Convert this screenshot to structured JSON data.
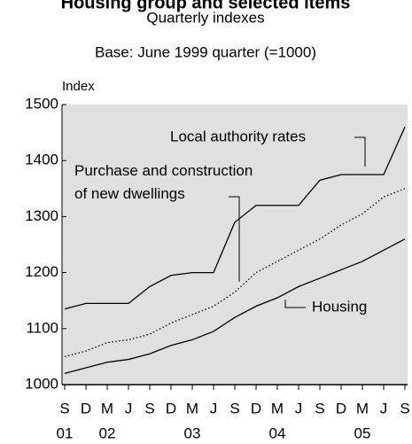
{
  "chart_data": {
    "type": "line",
    "title": "Housing group and selected items",
    "subtitle": "Quarterly indexes",
    "note": "Base: June 1999 quarter (=1000)",
    "y_label": "Index",
    "categories": [
      "S",
      "D",
      "M",
      "J",
      "S",
      "D",
      "M",
      "J",
      "S",
      "D",
      "M",
      "J",
      "S",
      "D",
      "M",
      "J",
      "S"
    ],
    "years": [
      "01",
      null,
      "02",
      null,
      null,
      null,
      "03",
      null,
      null,
      null,
      "04",
      null,
      null,
      null,
      "05",
      null,
      null
    ],
    "ylim": [
      1000,
      1500
    ],
    "yticks": [
      1000,
      1100,
      1200,
      1300,
      1400,
      1500
    ],
    "background": "#e0e0e0",
    "series": [
      {
        "name": "Local authority rates",
        "color": "#000000",
        "style": "solid",
        "values": [
          1135,
          1145,
          1145,
          1145,
          1175,
          1195,
          1200,
          1200,
          1290,
          1320,
          1320,
          1320,
          1365,
          1375,
          1375,
          1375,
          1460
        ]
      },
      {
        "name": "Purchase and construction of new dwellings",
        "color": "#000000",
        "style": "dotted",
        "values": [
          1050,
          1060,
          1075,
          1080,
          1090,
          1110,
          1125,
          1140,
          1165,
          1200,
          1220,
          1240,
          1260,
          1285,
          1305,
          1335,
          1350
        ]
      },
      {
        "name": "Housing",
        "color": "#000000",
        "style": "solid",
        "values": [
          1020,
          1030,
          1040,
          1045,
          1055,
          1070,
          1080,
          1095,
          1120,
          1140,
          1155,
          1175,
          1190,
          1205,
          1220,
          1240,
          1260
        ]
      }
    ]
  }
}
